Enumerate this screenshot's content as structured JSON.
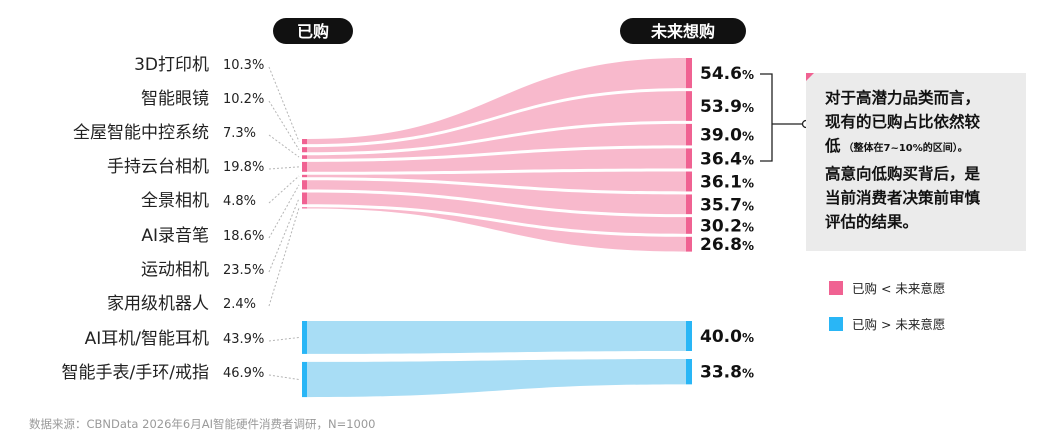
{
  "headers": {
    "bought": "已购",
    "future": "未来想购"
  },
  "colors": {
    "pink": "#f06292",
    "pink_light": "#f8b9cc",
    "blue": "#29b6f6",
    "blue_light": "#a8ddf5",
    "pill": "#111111",
    "note_bg": "#ebebeb",
    "dash": "#b5b5b5"
  },
  "chart_data": {
    "type": "sankey",
    "columns": [
      "已购",
      "未来想购"
    ],
    "categories": [
      "3D打印机",
      "智能眼镜",
      "全屋智能中控系统",
      "手持云台相机",
      "全景相机",
      "AI录音笔",
      "运动相机",
      "家用级机器人",
      "AI耳机/智能耳机",
      "智能手表/手环/戒指"
    ],
    "bought_pct": [
      "10.3%",
      "10.2%",
      "7.3%",
      "19.8%",
      "4.8%",
      "18.6%",
      "23.5%",
      "2.4%",
      "43.9%",
      "46.9%"
    ],
    "bought": [
      10.3,
      10.2,
      7.3,
      19.8,
      4.8,
      18.6,
      23.5,
      2.4,
      43.9,
      46.9
    ],
    "future": [
      54.6,
      53.9,
      39.0,
      36.4,
      36.1,
      35.7,
      30.2,
      26.8,
      40.0,
      33.8
    ],
    "future_display": [
      "54.6",
      "53.9",
      "39.0",
      "36.4",
      "36.1",
      "35.7",
      "30.2",
      "26.8",
      "40.0",
      "33.8"
    ],
    "future_unit": "%",
    "group": [
      "lt",
      "lt",
      "lt",
      "lt",
      "lt",
      "lt",
      "lt",
      "lt",
      "gt",
      "gt"
    ]
  },
  "note": {
    "lines": [
      "对于高潜力品类而言，",
      "现有的已购占比依然较",
      "低",
      "高意向低购买背后，是",
      "当前消费者决策前审慎",
      "评估的结果。"
    ],
    "small": "（整体在7~10%的区间）。"
  },
  "legend": [
    {
      "label": "已购 < 未来意愿",
      "color": "#f06292"
    },
    {
      "label": "已购 > 未来意愿",
      "color": "#29b6f6"
    }
  ],
  "source": "数据来源：CBNData 2026年6月AI智能硬件消费者调研，N=1000"
}
